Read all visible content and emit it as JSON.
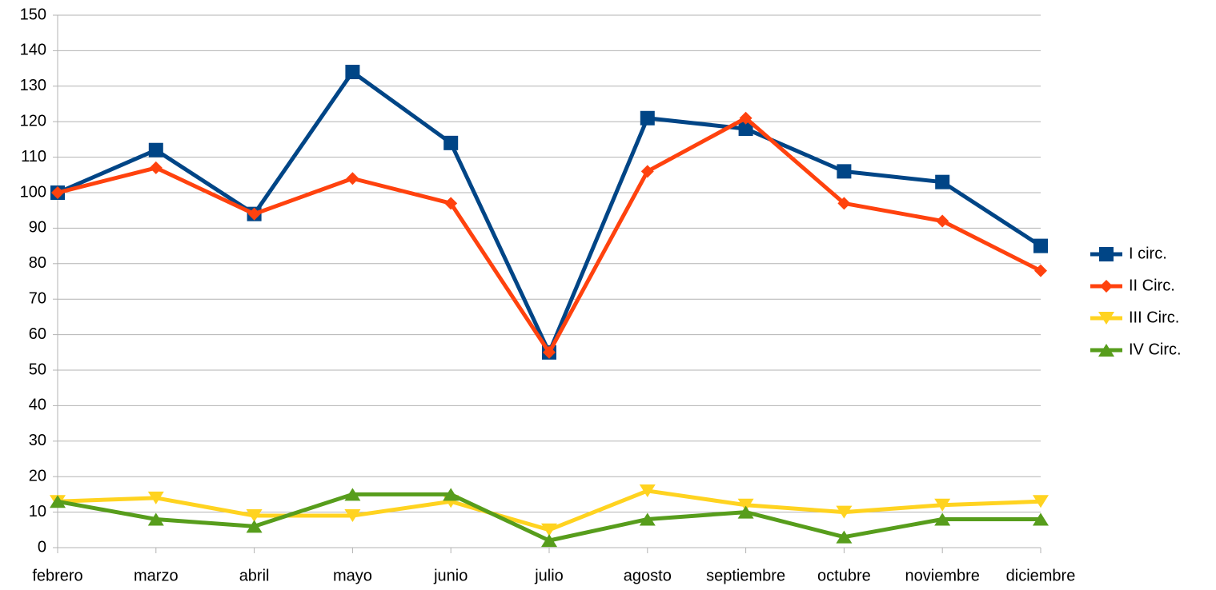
{
  "chart_data": {
    "type": "line",
    "categories": [
      "febrero",
      "marzo",
      "abril",
      "mayo",
      "junio",
      "julio",
      "agosto",
      "septiembre",
      "octubre",
      "noviembre",
      "diciembre"
    ],
    "series": [
      {
        "name": "I circ.",
        "color": "#004586",
        "marker": "square",
        "values": [
          100,
          112,
          94,
          134,
          114,
          55,
          121,
          118,
          106,
          103,
          85
        ]
      },
      {
        "name": "II Circ.",
        "color": "#ff420e",
        "marker": "diamond",
        "values": [
          100,
          107,
          94,
          104,
          97,
          55,
          106,
          121,
          97,
          92,
          78
        ]
      },
      {
        "name": "III Circ.",
        "color": "#ffd320",
        "marker": "triangle-down",
        "values": [
          13,
          14,
          9,
          9,
          13,
          5,
          16,
          12,
          10,
          12,
          13
        ]
      },
      {
        "name": "IV Circ.",
        "color": "#579d1c",
        "marker": "triangle-up",
        "values": [
          13,
          8,
          6,
          15,
          15,
          2,
          8,
          10,
          3,
          8,
          8
        ]
      }
    ],
    "ylim": [
      0,
      150
    ],
    "yticks": [
      0,
      10,
      20,
      30,
      40,
      50,
      60,
      70,
      80,
      90,
      100,
      110,
      120,
      130,
      140,
      150
    ],
    "grid": true,
    "legend": "right"
  }
}
